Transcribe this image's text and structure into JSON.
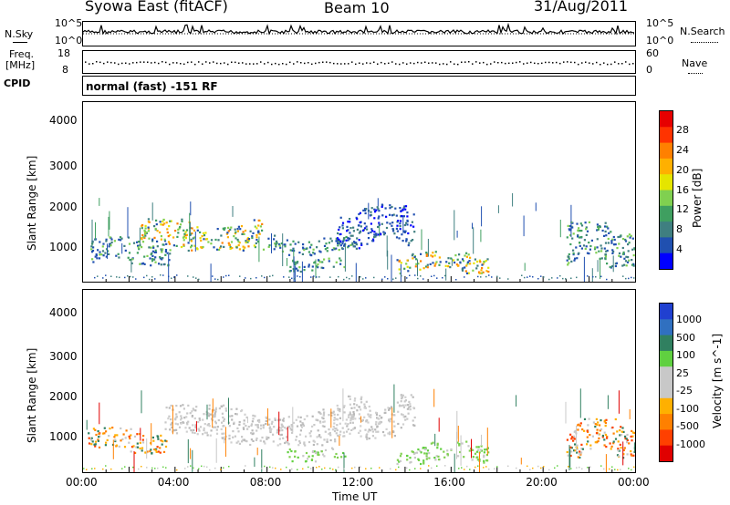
{
  "header": {
    "station": "Syowa East (fitACF)",
    "beam": "Beam 10",
    "date": "31/Aug/2011"
  },
  "strips": {
    "nsky_label": "N.Sky",
    "nsearch_label": "N.Search",
    "freq_label_1": "Freq.",
    "freq_label_2": "[MHz]",
    "nave_label": "Nave",
    "cpid_label": "CPID",
    "cpid_value": "normal (fast) -151 RF",
    "noise_left_ticks": [
      "10^5",
      "10^0"
    ],
    "noise_right_ticks": [
      "10^5",
      "10^0"
    ],
    "freq_left_ticks": [
      "18",
      "8"
    ],
    "nave_right_ticks": [
      "60",
      "0"
    ]
  },
  "chart_data": [
    {
      "type": "heatmap",
      "panel": "power",
      "ylabel": "Slant Range [km]",
      "ylim": [
        180,
        4600
      ],
      "yticks": [
        "4000",
        "3000",
        "2000",
        "1000"
      ],
      "colorbar_label": "Power [dB]",
      "colorbar_ticks": [
        "28",
        "24",
        "20",
        "16",
        "12",
        "8",
        "4"
      ],
      "colorbar_colors": [
        "#e60000",
        "#ff3300",
        "#ff8000",
        "#ffb000",
        "#e5e500",
        "#80d050",
        "#3f9f60",
        "#3f7f80",
        "#2050b0",
        "#0000ff"
      ],
      "regions": [
        {
          "t0": 0.3,
          "t1": 3.8,
          "r0": 600,
          "r1": 1300,
          "level": "mid"
        },
        {
          "t0": 2.5,
          "t1": 7.8,
          "r0": 950,
          "r1": 1750,
          "level": "high"
        },
        {
          "t0": 7.8,
          "t1": 11.8,
          "r0": 850,
          "r1": 1350,
          "level": "mid"
        },
        {
          "t0": 8.8,
          "t1": 11.4,
          "r0": 450,
          "r1": 800,
          "level": "mid"
        },
        {
          "t0": 11.0,
          "t1": 14.4,
          "r0": 1000,
          "r1": 2100,
          "level": "low"
        },
        {
          "t0": 13.6,
          "t1": 17.6,
          "r0": 400,
          "r1": 950,
          "level": "high"
        },
        {
          "t0": 21.0,
          "t1": 24.0,
          "r0": 550,
          "r1": 1700,
          "level": "mid"
        }
      ]
    },
    {
      "type": "heatmap",
      "panel": "velocity",
      "xlabel": "Time UT",
      "ylabel": "Slant Range [km]",
      "xlim": [
        0,
        24
      ],
      "xticks": [
        "00:00",
        "04:00",
        "08:00",
        "12:00",
        "16:00",
        "20:00",
        "00:00"
      ],
      "ylim": [
        180,
        4600
      ],
      "yticks": [
        "4000",
        "3000",
        "2000",
        "1000"
      ],
      "colorbar_label": "Velocity [m s^-1]",
      "colorbar_ticks": [
        "1000",
        "500",
        "100",
        "25",
        "-25",
        "-100",
        "-500",
        "-1000"
      ],
      "colorbar_colors": [
        "#2040d0",
        "#3070c0",
        "#308060",
        "#60d040",
        "#c8c8c8",
        "#c8c8c8",
        "#ffb000",
        "#ff8000",
        "#ff4000",
        "#e00000"
      ],
      "regions": [
        {
          "t0": 0.2,
          "t1": 3.6,
          "r0": 650,
          "r1": 1300,
          "level": "neg"
        },
        {
          "t0": 3.5,
          "t1": 11.8,
          "r0": 850,
          "r1": 1850,
          "level": "zero"
        },
        {
          "t0": 11.5,
          "t1": 14.4,
          "r0": 1000,
          "r1": 2100,
          "level": "zero"
        },
        {
          "t0": 8.8,
          "t1": 11.4,
          "r0": 450,
          "r1": 800,
          "level": "pos"
        },
        {
          "t0": 13.6,
          "t1": 17.6,
          "r0": 400,
          "r1": 950,
          "level": "pos"
        },
        {
          "t0": 21.0,
          "t1": 24.0,
          "r0": 550,
          "r1": 1500,
          "level": "neg"
        }
      ]
    }
  ]
}
